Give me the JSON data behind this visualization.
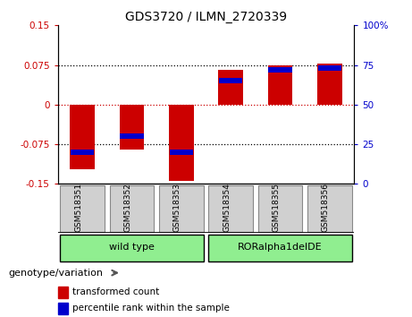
{
  "title": "GDS3720 / ILMN_2720339",
  "samples": [
    "GSM518351",
    "GSM518352",
    "GSM518353",
    "GSM518354",
    "GSM518355",
    "GSM518356"
  ],
  "transformed_count": [
    -0.122,
    -0.085,
    -0.145,
    0.065,
    0.075,
    0.078
  ],
  "percentile_rank_pct": [
    20,
    30,
    20,
    65,
    72,
    73
  ],
  "ylim_left": [
    -0.15,
    0.15
  ],
  "ylim_right": [
    0,
    100
  ],
  "yticks_left": [
    -0.15,
    -0.075,
    0,
    0.075,
    0.15
  ],
  "yticks_right": [
    0,
    25,
    50,
    75,
    100
  ],
  "ytick_labels_left": [
    "-0.15",
    "-0.075",
    "0",
    "0.075",
    "0.15"
  ],
  "ytick_labels_right": [
    "0",
    "25",
    "50",
    "75",
    "100%"
  ],
  "hlines_dotted": [
    -0.075,
    0.075
  ],
  "hline_red": 0,
  "red_color": "#cc0000",
  "blue_color": "#0000cc",
  "bar_width": 0.5,
  "group1_name": "wild type",
  "group1_samples": [
    0,
    1,
    2
  ],
  "group2_name": "RORalpha1delDE",
  "group2_samples": [
    3,
    4,
    5
  ],
  "group_color": "#90ee90",
  "sample_cell_color": "#d0d0d0",
  "genotype_label": "genotype/variation",
  "legend_red": "transformed count",
  "legend_blue": "percentile rank within the sample"
}
